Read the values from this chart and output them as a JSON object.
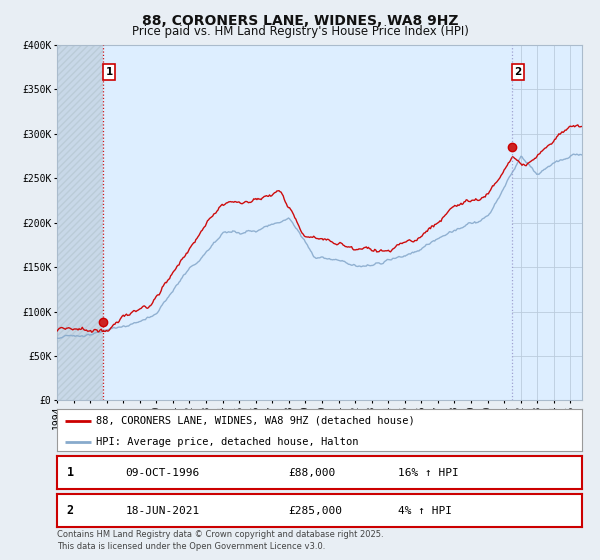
{
  "title": "88, CORONERS LANE, WIDNES, WA8 9HZ",
  "subtitle": "Price paid vs. HM Land Registry's House Price Index (HPI)",
  "legend_line1": "88, CORONERS LANE, WIDNES, WA8 9HZ (detached house)",
  "legend_line2": "HPI: Average price, detached house, Halton",
  "footnote1": "Contains HM Land Registry data © Crown copyright and database right 2025.",
  "footnote2": "This data is licensed under the Open Government Licence v3.0.",
  "sale1_date": "09-OCT-1996",
  "sale1_price": "£88,000",
  "sale1_hpi": "16% ↑ HPI",
  "sale2_date": "18-JUN-2021",
  "sale2_price": "£285,000",
  "sale2_hpi": "4% ↑ HPI",
  "sale1_x": 1996.77,
  "sale1_y": 88000,
  "sale2_x": 2021.46,
  "sale2_y": 285000,
  "vline1_x": 1996.77,
  "vline2_x": 2021.46,
  "red_color": "#cc0000",
  "blue_color": "#88aacc",
  "background_color": "#e8eef4",
  "plot_bg_color": "#ddeeff",
  "hatch_color": "#bbccdd",
  "grid_color": "#bbccdd",
  "ylim": [
    0,
    400000
  ],
  "xlim_start": 1994.0,
  "xlim_end": 2025.7,
  "yticks": [
    0,
    50000,
    100000,
    150000,
    200000,
    250000,
    300000,
    350000,
    400000
  ],
  "ytick_labels": [
    "£0",
    "£50K",
    "£100K",
    "£150K",
    "£200K",
    "£250K",
    "£300K",
    "£350K",
    "£400K"
  ],
  "xticks": [
    1994,
    1995,
    1996,
    1997,
    1998,
    1999,
    2000,
    2001,
    2002,
    2003,
    2004,
    2005,
    2006,
    2007,
    2008,
    2009,
    2010,
    2011,
    2012,
    2013,
    2014,
    2015,
    2016,
    2017,
    2018,
    2019,
    2020,
    2021,
    2022,
    2023,
    2024,
    2025
  ],
  "title_fontsize": 10,
  "subtitle_fontsize": 8.5,
  "tick_fontsize": 7,
  "legend_fontsize": 7.5,
  "annotation_fontsize": 8,
  "footnote_fontsize": 6
}
